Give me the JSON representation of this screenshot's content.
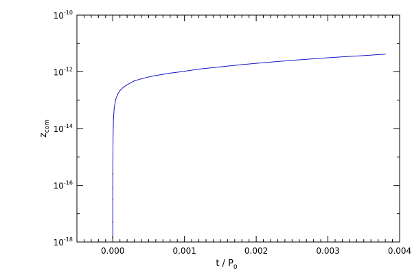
{
  "chart_data": {
    "type": "line",
    "title": "",
    "xlabel": {
      "main": "t  /  P",
      "sub": "0"
    },
    "ylabel": {
      "main": "z",
      "sub": "com"
    },
    "xlim": [
      -0.0005,
      0.004
    ],
    "ylim": [
      1e-18,
      1e-10
    ],
    "yscale": "log",
    "grid": false,
    "legend": "none",
    "x_ticks": [
      {
        "value": 0.0,
        "label": "0.000"
      },
      {
        "value": 0.001,
        "label": "0.001"
      },
      {
        "value": 0.002,
        "label": "0.002"
      },
      {
        "value": 0.003,
        "label": "0.003"
      },
      {
        "value": 0.004,
        "label": "0.004"
      }
    ],
    "y_ticks": [
      {
        "value": 1e-18,
        "base": "10",
        "exp": "-18"
      },
      {
        "value": 1e-16,
        "base": "10",
        "exp": "-16"
      },
      {
        "value": 1e-14,
        "base": "10",
        "exp": "-14"
      },
      {
        "value": 1e-12,
        "base": "10",
        "exp": "-12"
      },
      {
        "value": 1e-10,
        "base": "10",
        "exp": "-10"
      }
    ],
    "series": [
      {
        "color": "#1515c8",
        "early_color": "#a01848",
        "x": [
          0.0,
          1e-07,
          3e-07,
          6e-07,
          1e-06,
          2e-06,
          4e-06,
          7e-06,
          1e-05,
          2e-05,
          4e-05,
          7e-05,
          0.0001,
          0.00015,
          0.0002,
          0.0003,
          0.0004,
          0.0005,
          0.0006,
          0.0008,
          0.001,
          0.0012,
          0.0015,
          0.0018,
          0.002,
          0.0025,
          0.003,
          0.0035,
          0.0038
        ],
        "y": [
          1.4e-18,
          5e-18,
          3.2e-17,
          8e-17,
          2.5e-16,
          1.2e-15,
          4e-15,
          1.2e-14,
          2.3e-14,
          5.3e-14,
          1.05e-13,
          1.65e-13,
          2.2e-13,
          2.9e-13,
          3.5e-13,
          4.8e-13,
          5.7e-13,
          6.6e-13,
          7.4e-13,
          9e-13,
          1.05e-12,
          1.25e-12,
          1.5e-12,
          1.8e-12,
          2e-12,
          2.55e-12,
          3.15e-12,
          3.75e-12,
          4.2e-12
        ]
      }
    ]
  }
}
